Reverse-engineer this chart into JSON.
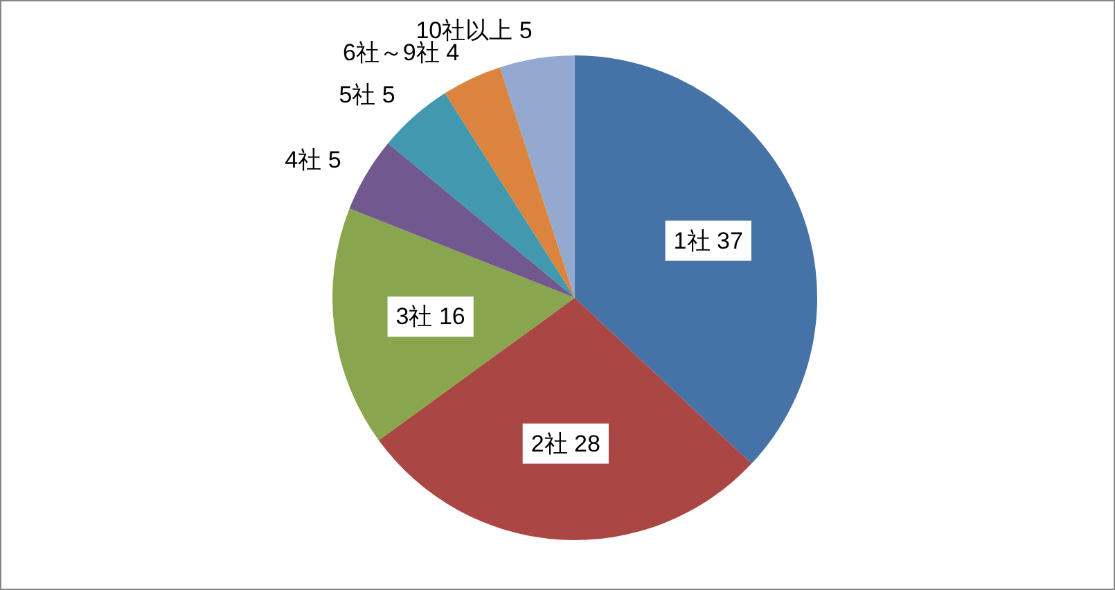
{
  "chart_data": {
    "type": "pie",
    "categories": [
      "1社",
      "2社",
      "3社",
      "4社",
      "5社",
      "6社～9社",
      "10社以上"
    ],
    "values": [
      37,
      28,
      16,
      5,
      5,
      4,
      5
    ],
    "colors": [
      "#4572a7",
      "#aa4643",
      "#89a54e",
      "#71588f",
      "#4198af",
      "#db843d",
      "#93a9cf"
    ],
    "data_labels": true
  }
}
